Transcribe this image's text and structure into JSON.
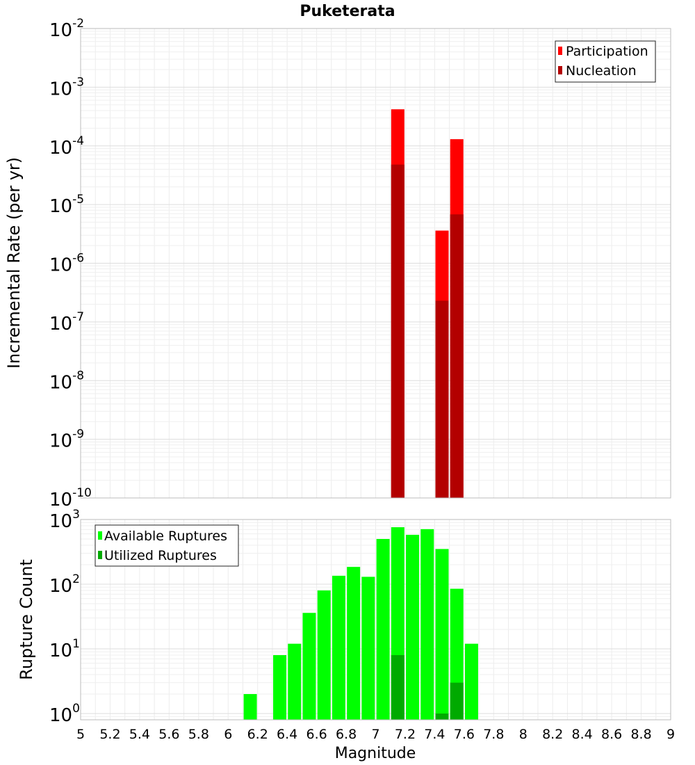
{
  "chart_data": [
    {
      "type": "bar",
      "title": "Puketerata",
      "ylabel": "Incremental Rate (per yr)",
      "xlabel": "",
      "xlim": [
        5,
        9
      ],
      "ylim": [
        1e-10,
        0.01
      ],
      "yscale": "log",
      "ytick_labels": [
        {
          "base": "10",
          "exp": "-2"
        },
        {
          "base": "10",
          "exp": "-3"
        },
        {
          "base": "10",
          "exp": "-4"
        },
        {
          "base": "10",
          "exp": "-5"
        },
        {
          "base": "10",
          "exp": "-6"
        },
        {
          "base": "10",
          "exp": "-7"
        },
        {
          "base": "10",
          "exp": "-8"
        },
        {
          "base": "10",
          "exp": "-9"
        },
        {
          "base": "10",
          "exp": "-10"
        }
      ],
      "grid": true,
      "legend_position": "top-right",
      "series": [
        {
          "name": "Participation",
          "color": "#ff0000",
          "x": [
            7.15,
            7.45,
            7.55
          ],
          "values": [
            0.00042,
            3.6e-06,
            0.00013
          ]
        },
        {
          "name": "Nucleation",
          "color": "#b30000",
          "x": [
            7.15,
            7.45,
            7.55
          ],
          "values": [
            4.8e-05,
            2.3e-07,
            6.8e-06
          ]
        }
      ]
    },
    {
      "type": "bar",
      "title": "",
      "ylabel": "Rupture Count",
      "xlabel": "Magnitude",
      "xlim": [
        5,
        9
      ],
      "ylim": [
        0.8,
        1000
      ],
      "yscale": "log",
      "ytick_labels": [
        {
          "base": "10",
          "exp": "3"
        },
        {
          "base": "10",
          "exp": "2"
        },
        {
          "base": "10",
          "exp": "1"
        },
        {
          "base": "10",
          "exp": "0"
        }
      ],
      "xtick_labels": [
        "5",
        "5.2",
        "5.4",
        "5.6",
        "5.8",
        "6",
        "6.2",
        "6.4",
        "6.6",
        "6.8",
        "7",
        "7.2",
        "7.4",
        "7.6",
        "7.8",
        "8",
        "8.2",
        "8.4",
        "8.6",
        "8.8",
        "9"
      ],
      "grid": true,
      "legend_position": "top-left",
      "series": [
        {
          "name": "Available Ruptures",
          "color": "#00ff00",
          "x": [
            6.15,
            6.35,
            6.45,
            6.55,
            6.65,
            6.75,
            6.85,
            6.95,
            7.05,
            7.15,
            7.25,
            7.35,
            7.45,
            7.55,
            7.65
          ],
          "values": [
            2,
            8,
            12,
            36,
            80,
            135,
            185,
            130,
            500,
            760,
            580,
            710,
            350,
            85,
            12
          ]
        },
        {
          "name": "Utilized Ruptures",
          "color": "#00aa00",
          "x": [
            7.15,
            7.45,
            7.55
          ],
          "values": [
            8,
            1,
            3
          ]
        }
      ]
    }
  ]
}
